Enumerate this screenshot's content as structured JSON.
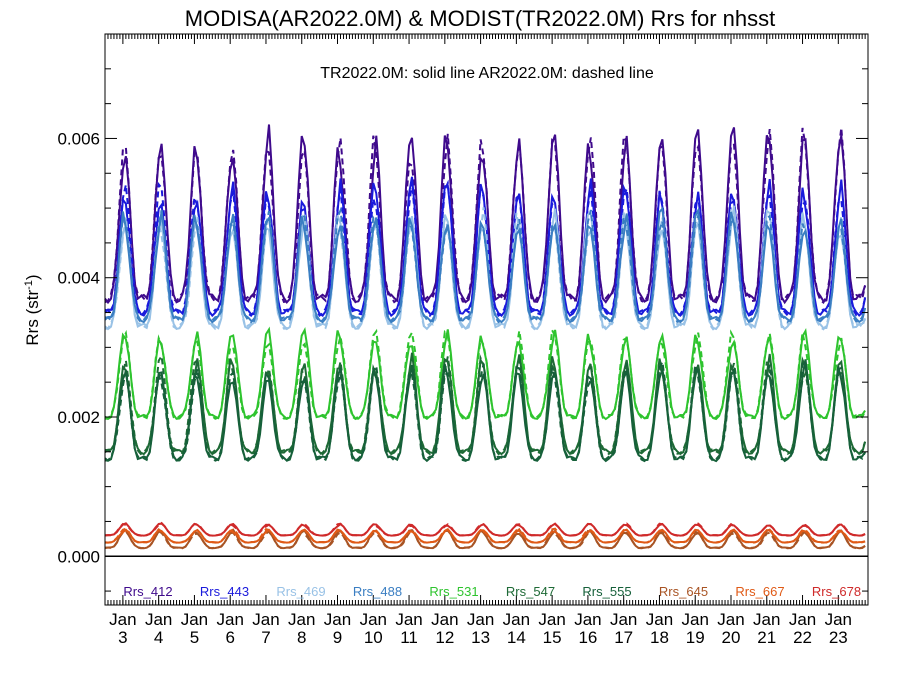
{
  "chart_data": {
    "type": "line",
    "title": "MODISA(AR2022.0M) & MODIST(TR2022.0M)  Rrs for nhsst",
    "subtitle": "TR2022.0M: solid line   AR2022.0M: dashed line",
    "ylabel": "Rrs (str",
    "ylabel_sup": "-1",
    "ylabel_end": ")",
    "ylim": [
      -0.0007,
      0.0075
    ],
    "yticks": [
      {
        "value": 0.0,
        "label": "0.000"
      },
      {
        "value": 0.002,
        "label": "0.002"
      },
      {
        "value": 0.004,
        "label": "0.004"
      },
      {
        "value": 0.006,
        "label": "0.006"
      }
    ],
    "x_start": 2002.5,
    "x_end": 2023.83,
    "xticks": [
      {
        "x": 2003,
        "month": "Jan",
        "year": "3"
      },
      {
        "x": 2004,
        "month": "Jan",
        "year": "4"
      },
      {
        "x": 2005,
        "month": "Jan",
        "year": "5"
      },
      {
        "x": 2006,
        "month": "Jan",
        "year": "6"
      },
      {
        "x": 2007,
        "month": "Jan",
        "year": "7"
      },
      {
        "x": 2008,
        "month": "Jan",
        "year": "8"
      },
      {
        "x": 2009,
        "month": "Jan",
        "year": "9"
      },
      {
        "x": 2010,
        "month": "Jan",
        "year": "10"
      },
      {
        "x": 2011,
        "month": "Jan",
        "year": "11"
      },
      {
        "x": 2012,
        "month": "Jan",
        "year": "12"
      },
      {
        "x": 2013,
        "month": "Jan",
        "year": "13"
      },
      {
        "x": 2014,
        "month": "Jan",
        "year": "14"
      },
      {
        "x": 2015,
        "month": "Jan",
        "year": "15"
      },
      {
        "x": 2016,
        "month": "Jan",
        "year": "16"
      },
      {
        "x": 2017,
        "month": "Jan",
        "year": "17"
      },
      {
        "x": 2018,
        "month": "Jan",
        "year": "18"
      },
      {
        "x": 2019,
        "month": "Jan",
        "year": "19"
      },
      {
        "x": 2020,
        "month": "Jan",
        "year": "20"
      },
      {
        "x": 2021,
        "month": "Jan",
        "year": "21"
      },
      {
        "x": 2022,
        "month": "Jan",
        "year": "22"
      },
      {
        "x": 2023,
        "month": "Jan",
        "year": "23"
      }
    ],
    "zero_line": 0,
    "series": [
      {
        "name": "Rrs_412",
        "color": "#3f0a8c",
        "min": 0.0037,
        "max": 0.006,
        "solid_pattern": [
          0.0,
          0.6,
          0.1
        ],
        "dashed_pattern": [
          0.1,
          0.7,
          0.3
        ]
      },
      {
        "name": "Rrs_443",
        "color": "#1a1adc",
        "min": 0.0035,
        "max": 0.0053,
        "solid_pattern": [
          0.0,
          0.7,
          0.2
        ],
        "dashed_pattern": [
          0.05,
          0.6,
          0.1
        ]
      },
      {
        "name": "Rrs_469",
        "color": "#99c2e6",
        "min": 0.0033,
        "max": 0.0049,
        "solid_pattern": [
          0.02,
          0.6,
          0.1
        ],
        "dashed_pattern": [
          0.0,
          0.7,
          0.2
        ]
      },
      {
        "name": "Rrs_488",
        "color": "#3a7ec2",
        "min": 0.0034,
        "max": 0.0049,
        "solid_pattern": [
          0.0,
          0.6,
          0.2
        ],
        "dashed_pattern": [
          0.05,
          0.6,
          0.1
        ]
      },
      {
        "name": "Rrs_531",
        "color": "#2ec42e",
        "min": 0.002,
        "max": 0.0032,
        "solid_pattern": [
          0.0,
          0.5,
          0.1
        ],
        "dashed_pattern": [
          0.05,
          0.6,
          0.1
        ]
      },
      {
        "name": "Rrs_547",
        "color": "#1e6a36",
        "min": 0.0015,
        "max": 0.0028,
        "solid_pattern": [
          0.0,
          0.6,
          0.1
        ],
        "dashed_pattern": [
          0.05,
          0.6,
          0.1
        ]
      },
      {
        "name": "Rrs_555",
        "color": "#16603a",
        "min": 0.0014,
        "max": 0.0027,
        "solid_pattern": [
          0.0,
          0.6,
          0.1
        ],
        "dashed_pattern": [
          0.05,
          0.6,
          0.1
        ]
      },
      {
        "name": "Rrs_645",
        "color": "#a85424",
        "min": 0.00012,
        "max": 0.00036,
        "solid_pattern": [
          0.0,
          0.6,
          0.1
        ],
        "dashed_pattern": [
          0.05,
          0.6,
          0.1
        ]
      },
      {
        "name": "Rrs_667",
        "color": "#e05a16",
        "min": 0.0002,
        "max": 0.00038,
        "solid_pattern": [
          0.0,
          0.6,
          0.1
        ],
        "dashed_pattern": [
          0.05,
          0.6,
          0.1
        ]
      },
      {
        "name": "Rrs_678",
        "color": "#cf2a2a",
        "min": 0.0003,
        "max": 0.00046,
        "solid_pattern": [
          0.0,
          0.5,
          0.1
        ],
        "dashed_pattern": [
          0.05,
          0.5,
          0.1
        ]
      }
    ],
    "legend_position": "bottom-inside",
    "grid": false
  }
}
